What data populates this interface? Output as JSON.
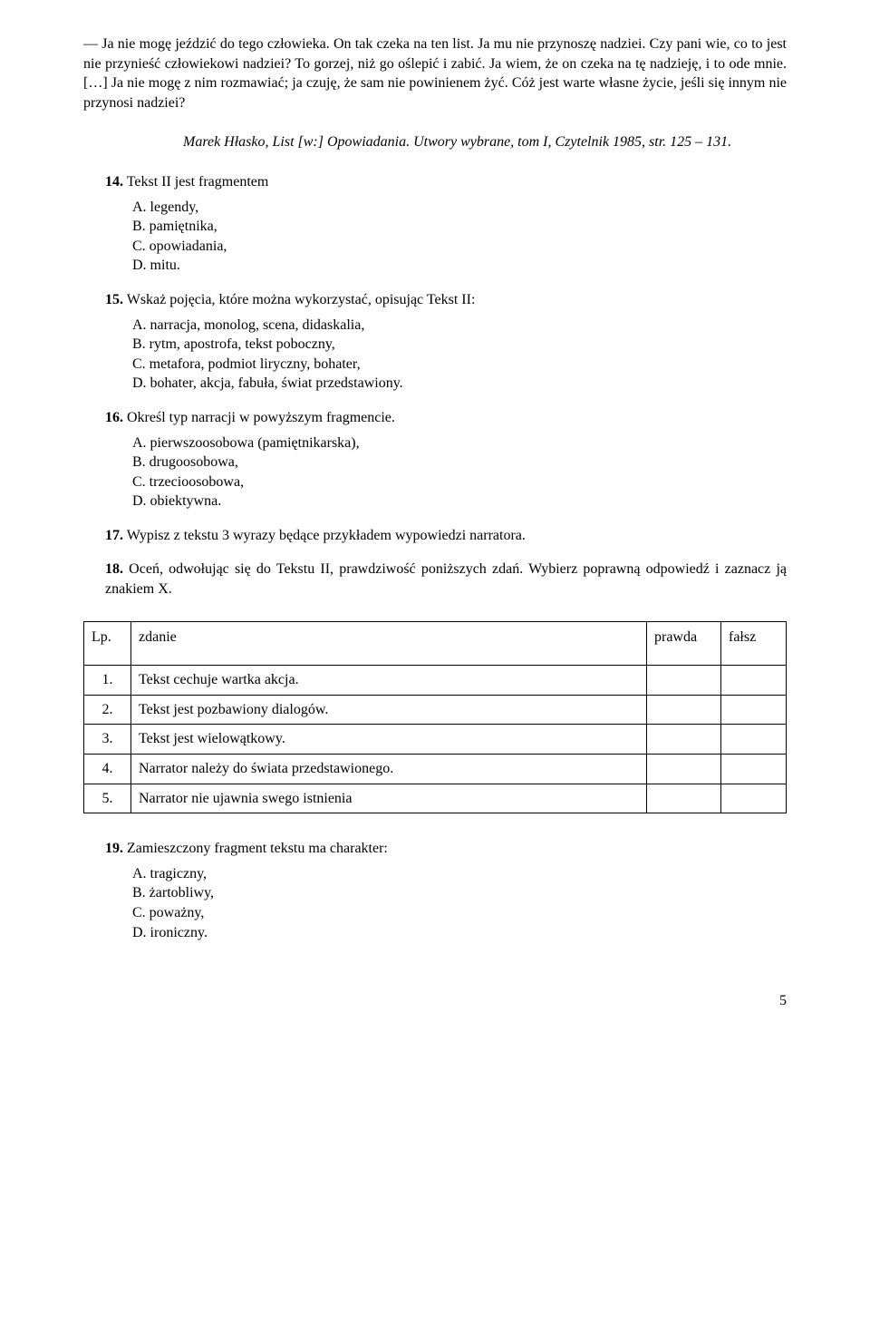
{
  "passage": "— Ja nie mogę jeździć do tego człowieka. On tak czeka na ten list. Ja mu nie przynoszę nadziei. Czy pani wie, co to jest nie przynieść człowiekowi nadziei? To gorzej, niż go oślepić i zabić. Ja wiem, że on czeka na tę nadzieję, i to ode mnie. […] Ja nie mogę z nim rozmawiać; ja czuję, że sam nie powinienem żyć. Cóż jest warte własne życie, jeśli się innym nie przynosi nadziei?",
  "citation": "Marek Hłasko, List [w:] Opowiadania. Utwory wybrane, tom I, Czytelnik 1985, str. 125 – 131.",
  "q14": {
    "num": "14.",
    "text": " Tekst II jest fragmentem",
    "opts": [
      "A.  legendy,",
      "B.  pamiętnika,",
      "C.  opowiadania,",
      "D.   mitu."
    ]
  },
  "q15": {
    "num": "15.",
    "text": " Wskaż pojęcia, które można wykorzystać, opisując Tekst II:",
    "opts": [
      "A.  narracja, monolog, scena, didaskalia,",
      "B.  rytm, apostrofa, tekst poboczny,",
      "C.  metafora, podmiot liryczny, bohater,",
      "D.   bohater, akcja, fabuła, świat przedstawiony."
    ]
  },
  "q16": {
    "num": "16.",
    "text": " Określ typ narracji w powyższym fragmencie.",
    "opts": [
      "A.  pierwszoosobowa  (pamiętnikarska),",
      "B.  drugoosobowa,",
      "C.  trzecioosobowa,",
      "D.  obiektywna."
    ]
  },
  "q17": {
    "num": "17.",
    "text": " Wypisz z tekstu 3 wyrazy będące przykładem wypowiedzi narratora."
  },
  "q18": {
    "num": "18.",
    "text": " Oceń, odwołując  się do Tekstu II, prawdziwość poniższych zdań. Wybierz poprawną odpowiedź i zaznacz ją znakiem X."
  },
  "table": {
    "headers": [
      "Lp.",
      "zdanie",
      "prawda",
      "fałsz"
    ],
    "rows": [
      [
        "1.",
        "Tekst cechuje wartka akcja."
      ],
      [
        "2.",
        "Tekst jest pozbawiony dialogów."
      ],
      [
        "3.",
        "Tekst jest wielowątkowy."
      ],
      [
        "4.",
        "Narrator należy do świata przedstawionego."
      ],
      [
        "5.",
        "Narrator nie ujawnia swego istnienia"
      ]
    ]
  },
  "q19": {
    "num": "19.",
    "text": " Zamieszczony fragment tekstu ma charakter:",
    "opts": [
      "A.  tragiczny,",
      "B.  żartobliwy,",
      "C.  poważny,",
      "D.  ironiczny."
    ]
  },
  "pageNum": "5"
}
